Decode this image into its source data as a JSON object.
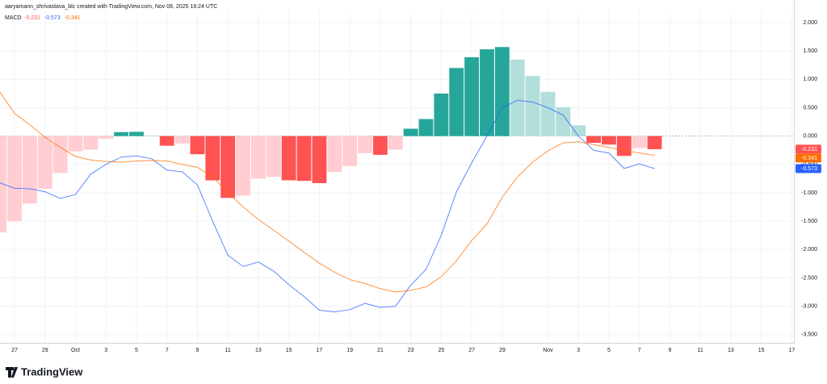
{
  "caption": "aaryamann_shrivastava_blc created with TradingView.com, Nov 08, 2025 16:24 UTC",
  "brand": "TradingView",
  "chart_data": {
    "type": "macd",
    "indicator": "MACD",
    "categories": [
      null,
      "27",
      null,
      "29",
      null,
      "Oct",
      null,
      "3",
      null,
      "5",
      null,
      "7",
      null,
      "9",
      null,
      "11",
      null,
      "13",
      null,
      "15",
      null,
      "17",
      null,
      "19",
      null,
      "21",
      null,
      "23",
      null,
      "25",
      null,
      "27",
      null,
      "29",
      null,
      null,
      "Nov",
      null,
      "3",
      null,
      "5",
      null,
      "7",
      null,
      "9",
      null,
      "11",
      null,
      "13",
      null,
      "15",
      null,
      "17"
    ],
    "series": [
      {
        "style": "histogram",
        "colors": {
          "above_rising": "#26a69a",
          "above_falling": "#b2dfdb",
          "below_rising": "#ffcdd2",
          "below_falling": "#ff5252"
        },
        "color": "#ff5252",
        "values": [
          -1.7,
          -1.5,
          -1.19,
          -0.93,
          -0.65,
          -0.27,
          -0.24,
          -0.05,
          0.07,
          0.075,
          0.01,
          -0.17,
          -0.13,
          -0.32,
          -0.78,
          -1.09,
          -1.05,
          -0.75,
          -0.72,
          -0.78,
          -0.79,
          -0.83,
          -0.63,
          -0.53,
          -0.3,
          -0.33,
          -0.24,
          0.13,
          0.3,
          0.75,
          1.2,
          1.39,
          1.53,
          1.57,
          1.35,
          1.06,
          0.78,
          0.51,
          0.19,
          -0.12,
          -0.15,
          -0.35,
          -0.21,
          -0.231,
          null,
          null,
          null,
          null,
          null,
          null,
          null,
          null,
          null
        ]
      },
      {
        "style": "line",
        "color": "#2962ff",
        "values": [
          -0.82,
          -0.92,
          -0.93,
          -0.98,
          -1.1,
          -1.03,
          -0.67,
          -0.5,
          -0.37,
          -0.35,
          -0.4,
          -0.6,
          -0.63,
          -0.86,
          -1.5,
          -2.1,
          -2.3,
          -2.22,
          -2.38,
          -2.62,
          -2.83,
          -3.07,
          -3.1,
          -3.06,
          -2.95,
          -3.02,
          -3.0,
          -2.63,
          -2.35,
          -1.75,
          -0.98,
          -0.47,
          0.0,
          0.5,
          0.63,
          0.6,
          0.5,
          0.37,
          0.0,
          -0.25,
          -0.3,
          -0.57,
          -0.49,
          -0.573,
          null,
          null,
          null,
          null,
          null,
          null,
          null,
          null,
          null
        ]
      },
      {
        "style": "line",
        "color": "#ff6d00",
        "values": [
          0.79,
          0.4,
          0.2,
          -0.02,
          -0.2,
          -0.36,
          -0.42,
          -0.45,
          -0.46,
          -0.44,
          -0.43,
          -0.44,
          -0.5,
          -0.55,
          -0.72,
          -1.0,
          -1.25,
          -1.47,
          -1.66,
          -1.85,
          -2.05,
          -2.24,
          -2.4,
          -2.53,
          -2.6,
          -2.69,
          -2.75,
          -2.72,
          -2.66,
          -2.48,
          -2.2,
          -1.84,
          -1.55,
          -1.08,
          -0.72,
          -0.46,
          -0.26,
          -0.12,
          -0.1,
          -0.15,
          -0.2,
          -0.25,
          -0.3,
          -0.341,
          null,
          null,
          null,
          null,
          null,
          null,
          null,
          null,
          null
        ]
      }
    ],
    "legend_order": [
      0,
      1,
      2
    ],
    "ylim": [
      -3.66,
      2.2
    ],
    "yticks": [
      {
        "value": 2,
        "label": "2.000"
      },
      {
        "value": 1.5,
        "label": "1.500"
      },
      {
        "value": 1,
        "label": "1.000"
      },
      {
        "value": 0.5,
        "label": "0.500"
      },
      {
        "value": 0,
        "label": "0.000"
      },
      {
        "value": -0.5,
        "label": "-0.500"
      },
      {
        "value": -1,
        "label": "-1.000"
      },
      {
        "value": -1.5,
        "label": "-1.500"
      },
      {
        "value": -2,
        "label": "-2.000"
      },
      {
        "value": -2.5,
        "label": "-2.500"
      },
      {
        "value": -3,
        "label": "-3.000"
      },
      {
        "value": -3.5,
        "label": "-3.500"
      }
    ],
    "grid": true
  }
}
